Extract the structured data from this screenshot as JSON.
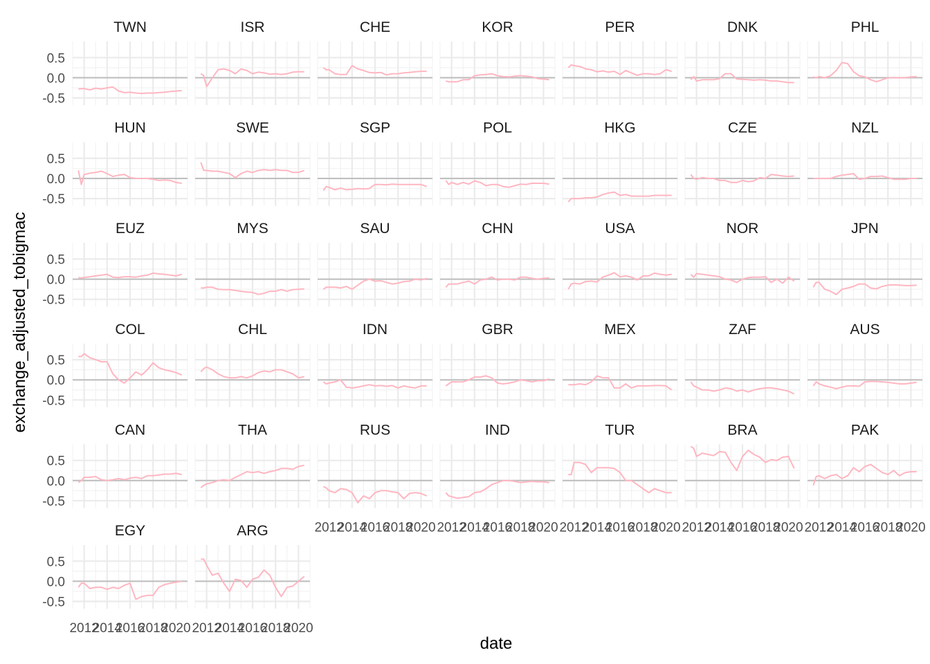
{
  "chart_data": {
    "type": "line",
    "facet": "small-multiples",
    "xlabel": "date",
    "ylabel": "exchange_adjusted_tobigmac",
    "x_range": [
      2011.0,
      2021.0
    ],
    "x_ticks": [
      2012,
      2014,
      2016,
      2018,
      2020
    ],
    "y_range": [
      -0.68,
      0.9
    ],
    "y_ticks": [
      -0.5,
      0.0,
      0.5
    ],
    "y_tick_labels": [
      "-0.5",
      "0.0",
      "0.5"
    ],
    "x_tick_labels": [
      "2012",
      "2014",
      "2016",
      "2018",
      "2020"
    ],
    "grid": true,
    "reference_line_y": 0,
    "line_color": "#ffb6c1",
    "x": [
      2011.5,
      2011.75,
      2012,
      2012.5,
      2013,
      2013.5,
      2014,
      2014.5,
      2015,
      2015.5,
      2016,
      2016.5,
      2017,
      2017.5,
      2018,
      2018.5,
      2019,
      2019.5,
      2020,
      2020.5
    ],
    "panels": [
      {
        "name": "TWN",
        "values": [
          -0.28,
          -0.27,
          -0.27,
          -0.3,
          -0.26,
          -0.28,
          -0.25,
          -0.23,
          -0.33,
          -0.37,
          -0.36,
          -0.38,
          -0.39,
          -0.38,
          -0.38,
          -0.37,
          -0.36,
          -0.34,
          -0.33,
          -0.32
        ]
      },
      {
        "name": "ISR",
        "values": [
          0.1,
          0.05,
          -0.22,
          0.0,
          0.2,
          0.22,
          0.18,
          0.1,
          0.22,
          0.18,
          0.1,
          0.14,
          0.12,
          0.09,
          0.1,
          0.08,
          0.1,
          0.14,
          0.15,
          0.15
        ]
      },
      {
        "name": "CHE",
        "values": [
          0.25,
          0.2,
          0.2,
          0.1,
          0.08,
          0.08,
          0.3,
          0.22,
          0.18,
          0.13,
          0.12,
          0.13,
          0.07,
          0.1,
          0.1,
          0.12,
          0.13,
          0.15,
          0.16,
          0.16
        ]
      },
      {
        "name": "KOR",
        "values": [
          -0.08,
          -0.1,
          -0.1,
          -0.1,
          -0.05,
          -0.05,
          0.05,
          0.07,
          0.08,
          0.1,
          0.05,
          0.03,
          0.02,
          0.04,
          0.05,
          0.04,
          0.02,
          -0.02,
          -0.03,
          -0.05
        ]
      },
      {
        "name": "PER",
        "values": [
          0.25,
          0.32,
          0.3,
          0.28,
          0.22,
          0.2,
          0.15,
          0.17,
          0.14,
          0.16,
          0.08,
          0.18,
          0.12,
          0.06,
          0.1,
          0.1,
          0.08,
          0.1,
          0.2,
          0.16
        ]
      },
      {
        "name": "DNK",
        "values": [
          -0.05,
          0.03,
          -0.08,
          -0.05,
          -0.05,
          -0.05,
          -0.02,
          0.1,
          0.1,
          -0.03,
          -0.04,
          -0.05,
          -0.06,
          -0.05,
          -0.06,
          -0.08,
          -0.08,
          -0.1,
          -0.12,
          -0.12
        ]
      },
      {
        "name": "PHL",
        "values": [
          0.02,
          0.0,
          0.03,
          0.0,
          0.05,
          0.18,
          0.38,
          0.35,
          0.15,
          0.05,
          0.02,
          -0.05,
          -0.1,
          -0.05,
          0.0,
          0.0,
          0.0,
          0.0,
          0.02,
          0.03
        ]
      },
      {
        "name": "HUN",
        "values": [
          0.2,
          -0.15,
          0.1,
          0.13,
          0.15,
          0.18,
          0.12,
          0.05,
          0.08,
          0.1,
          0.02,
          0.0,
          0.0,
          0.0,
          -0.02,
          -0.05,
          -0.04,
          -0.05,
          -0.1,
          -0.12
        ]
      },
      {
        "name": "SWE",
        "values": [
          0.4,
          0.2,
          0.2,
          0.18,
          0.18,
          0.15,
          0.12,
          0.02,
          0.12,
          0.18,
          0.15,
          0.2,
          0.22,
          0.2,
          0.22,
          0.2,
          0.2,
          0.15,
          0.15,
          0.2
        ]
      },
      {
        "name": "SGP",
        "values": [
          -0.3,
          -0.2,
          -0.22,
          -0.28,
          -0.24,
          -0.28,
          -0.27,
          -0.25,
          -0.26,
          -0.25,
          -0.15,
          -0.15,
          -0.16,
          -0.14,
          -0.15,
          -0.15,
          -0.15,
          -0.15,
          -0.15,
          -0.2
        ]
      },
      {
        "name": "POL",
        "values": [
          -0.05,
          -0.15,
          -0.1,
          -0.15,
          -0.1,
          -0.14,
          -0.06,
          -0.1,
          -0.18,
          -0.15,
          -0.15,
          -0.2,
          -0.22,
          -0.18,
          -0.14,
          -0.15,
          -0.12,
          -0.12,
          -0.12,
          -0.14
        ]
      },
      {
        "name": "HKG",
        "values": [
          -0.58,
          -0.5,
          -0.5,
          -0.5,
          -0.48,
          -0.48,
          -0.46,
          -0.4,
          -0.36,
          -0.34,
          -0.42,
          -0.4,
          -0.44,
          -0.44,
          -0.44,
          -0.44,
          -0.42,
          -0.42,
          -0.42,
          -0.42
        ]
      },
      {
        "name": "CZE",
        "values": [
          0.1,
          0.0,
          -0.02,
          0.02,
          0.0,
          0.0,
          -0.05,
          -0.05,
          -0.1,
          -0.1,
          -0.05,
          -0.08,
          -0.06,
          0.02,
          0.0,
          0.1,
          0.08,
          0.06,
          0.05,
          0.06
        ]
      },
      {
        "name": "NZL",
        "values": [
          0.0,
          0.0,
          0.0,
          0.0,
          0.0,
          0.05,
          0.08,
          0.1,
          0.12,
          -0.02,
          0.0,
          0.05,
          0.05,
          0.06,
          0.02,
          -0.02,
          -0.02,
          -0.02,
          0.0,
          0.0
        ]
      },
      {
        "name": "EUZ",
        "values": [
          0.04,
          0.03,
          0.04,
          0.06,
          0.08,
          0.1,
          0.12,
          0.05,
          0.04,
          0.06,
          0.06,
          0.05,
          0.08,
          0.1,
          0.15,
          0.13,
          0.12,
          0.1,
          0.08,
          0.12
        ]
      },
      {
        "name": "MYS",
        "values": [
          -0.22,
          -0.22,
          -0.2,
          -0.2,
          -0.25,
          -0.26,
          -0.26,
          -0.28,
          -0.3,
          -0.32,
          -0.33,
          -0.38,
          -0.35,
          -0.3,
          -0.3,
          -0.26,
          -0.3,
          -0.26,
          -0.25,
          -0.24
        ]
      },
      {
        "name": "SAU",
        "values": [
          -0.25,
          -0.2,
          -0.2,
          -0.2,
          -0.22,
          -0.18,
          -0.25,
          -0.15,
          -0.05,
          0.0,
          -0.05,
          -0.04,
          -0.08,
          -0.12,
          -0.1,
          -0.06,
          -0.05,
          0.0,
          -0.02,
          0.02
        ]
      },
      {
        "name": "CHN",
        "values": [
          -0.2,
          -0.12,
          -0.12,
          -0.12,
          -0.08,
          -0.05,
          -0.12,
          -0.02,
          0.0,
          0.05,
          -0.02,
          0.0,
          0.0,
          -0.02,
          0.05,
          0.05,
          0.02,
          0.0,
          0.02,
          0.03
        ]
      },
      {
        "name": "USA",
        "values": [
          -0.25,
          -0.12,
          -0.1,
          -0.12,
          -0.06,
          -0.05,
          -0.07,
          0.05,
          0.1,
          0.16,
          0.06,
          0.08,
          0.05,
          -0.02,
          0.08,
          0.08,
          0.15,
          0.12,
          0.1,
          0.12
        ]
      },
      {
        "name": "NOR",
        "values": [
          0.12,
          0.05,
          0.14,
          0.12,
          0.1,
          0.08,
          0.06,
          0.0,
          -0.02,
          -0.08,
          0.0,
          0.04,
          0.05,
          0.05,
          0.06,
          -0.08,
          0.0,
          -0.1,
          0.05,
          -0.05
        ]
      },
      {
        "name": "JPN",
        "values": [
          -0.2,
          -0.08,
          -0.08,
          -0.25,
          -0.3,
          -0.38,
          -0.25,
          -0.22,
          -0.18,
          -0.12,
          -0.12,
          -0.22,
          -0.24,
          -0.18,
          -0.15,
          -0.14,
          -0.15,
          -0.16,
          -0.16,
          -0.15
        ]
      },
      {
        "name": "COL",
        "values": [
          0.58,
          0.58,
          0.65,
          0.55,
          0.5,
          0.45,
          0.45,
          0.15,
          0.0,
          -0.08,
          0.05,
          0.2,
          0.12,
          0.25,
          0.42,
          0.3,
          0.25,
          0.22,
          0.18,
          0.12
        ]
      },
      {
        "name": "CHL",
        "values": [
          0.2,
          0.28,
          0.32,
          0.25,
          0.15,
          0.08,
          0.05,
          0.05,
          0.08,
          0.05,
          0.1,
          0.18,
          0.22,
          0.2,
          0.25,
          0.25,
          0.2,
          0.15,
          0.05,
          0.08
        ]
      },
      {
        "name": "IDN",
        "values": [
          -0.05,
          -0.1,
          -0.08,
          -0.05,
          0.0,
          -0.18,
          -0.2,
          -0.18,
          -0.15,
          -0.12,
          -0.15,
          -0.14,
          -0.16,
          -0.14,
          -0.2,
          -0.15,
          -0.18,
          -0.2,
          -0.15,
          -0.15
        ]
      },
      {
        "name": "GBR",
        "values": [
          -0.15,
          -0.1,
          -0.05,
          -0.05,
          -0.05,
          0.0,
          0.07,
          0.07,
          0.1,
          0.05,
          -0.08,
          -0.1,
          -0.08,
          -0.05,
          0.0,
          -0.02,
          -0.05,
          -0.02,
          -0.02,
          0.02
        ]
      },
      {
        "name": "MEX",
        "values": [
          -0.12,
          -0.12,
          -0.12,
          -0.1,
          -0.12,
          -0.05,
          0.1,
          0.05,
          0.05,
          -0.2,
          -0.2,
          -0.1,
          -0.2,
          -0.15,
          -0.15,
          -0.15,
          -0.14,
          -0.14,
          -0.15,
          -0.25
        ]
      },
      {
        "name": "ZAF",
        "values": [
          -0.05,
          -0.15,
          -0.18,
          -0.25,
          -0.25,
          -0.28,
          -0.25,
          -0.2,
          -0.22,
          -0.28,
          -0.25,
          -0.3,
          -0.25,
          -0.22,
          -0.2,
          -0.2,
          -0.22,
          -0.25,
          -0.28,
          -0.35
        ]
      },
      {
        "name": "AUS",
        "values": [
          -0.15,
          -0.05,
          -0.1,
          -0.15,
          -0.18,
          -0.22,
          -0.18,
          -0.15,
          -0.15,
          -0.16,
          -0.05,
          -0.04,
          -0.04,
          -0.05,
          -0.06,
          -0.08,
          -0.1,
          -0.1,
          -0.08,
          -0.06
        ]
      },
      {
        "name": "CAN",
        "values": [
          -0.05,
          0.0,
          0.08,
          0.08,
          0.1,
          0.02,
          0.0,
          0.02,
          0.05,
          0.02,
          0.06,
          0.08,
          0.05,
          0.12,
          0.12,
          0.14,
          0.16,
          0.16,
          0.18,
          0.15
        ]
      },
      {
        "name": "THA",
        "values": [
          -0.18,
          -0.12,
          -0.08,
          -0.05,
          0.0,
          0.02,
          0.0,
          0.08,
          0.15,
          0.22,
          0.2,
          0.22,
          0.18,
          0.22,
          0.25,
          0.3,
          0.3,
          0.28,
          0.35,
          0.38
        ]
      },
      {
        "name": "RUS",
        "values": [
          -0.15,
          -0.18,
          -0.25,
          -0.3,
          -0.2,
          -0.22,
          -0.3,
          -0.55,
          -0.38,
          -0.45,
          -0.3,
          -0.25,
          -0.25,
          -0.28,
          -0.3,
          -0.45,
          -0.32,
          -0.3,
          -0.32,
          -0.38
        ]
      },
      {
        "name": "IND",
        "values": [
          -0.3,
          -0.38,
          -0.4,
          -0.44,
          -0.42,
          -0.4,
          -0.3,
          -0.28,
          -0.2,
          -0.1,
          -0.05,
          0.0,
          0.0,
          -0.02,
          -0.05,
          -0.03,
          -0.02,
          -0.03,
          -0.03,
          -0.05
        ]
      },
      {
        "name": "TUR",
        "values": [
          0.15,
          0.15,
          0.45,
          0.45,
          0.4,
          0.2,
          0.32,
          0.32,
          0.32,
          0.3,
          0.2,
          0.0,
          0.0,
          -0.1,
          -0.2,
          -0.3,
          -0.2,
          -0.25,
          -0.3,
          -0.3
        ]
      },
      {
        "name": "BRA",
        "values": [
          0.85,
          0.8,
          0.6,
          0.68,
          0.65,
          0.62,
          0.72,
          0.7,
          0.45,
          0.25,
          0.6,
          0.75,
          0.65,
          0.58,
          0.45,
          0.52,
          0.5,
          0.58,
          0.6,
          0.3
        ]
      },
      {
        "name": "PAK",
        "values": [
          -0.12,
          0.1,
          0.12,
          0.05,
          0.12,
          0.15,
          0.05,
          0.12,
          0.32,
          0.22,
          0.35,
          0.4,
          0.3,
          0.2,
          0.15,
          0.25,
          0.12,
          0.2,
          0.22,
          0.22
        ]
      },
      {
        "name": "EGY",
        "values": [
          -0.15,
          -0.05,
          -0.05,
          -0.18,
          -0.15,
          -0.15,
          -0.2,
          -0.15,
          -0.18,
          -0.1,
          -0.05,
          -0.45,
          -0.38,
          -0.35,
          -0.35,
          -0.15,
          -0.08,
          -0.05,
          -0.02,
          0.0
        ]
      },
      {
        "name": "ARG",
        "values": [
          0.55,
          0.55,
          0.4,
          0.15,
          0.2,
          -0.05,
          -0.25,
          0.05,
          0.02,
          -0.15,
          0.05,
          0.1,
          0.28,
          0.15,
          -0.15,
          -0.38,
          -0.15,
          -0.12,
          0.0,
          0.12
        ]
      }
    ]
  }
}
